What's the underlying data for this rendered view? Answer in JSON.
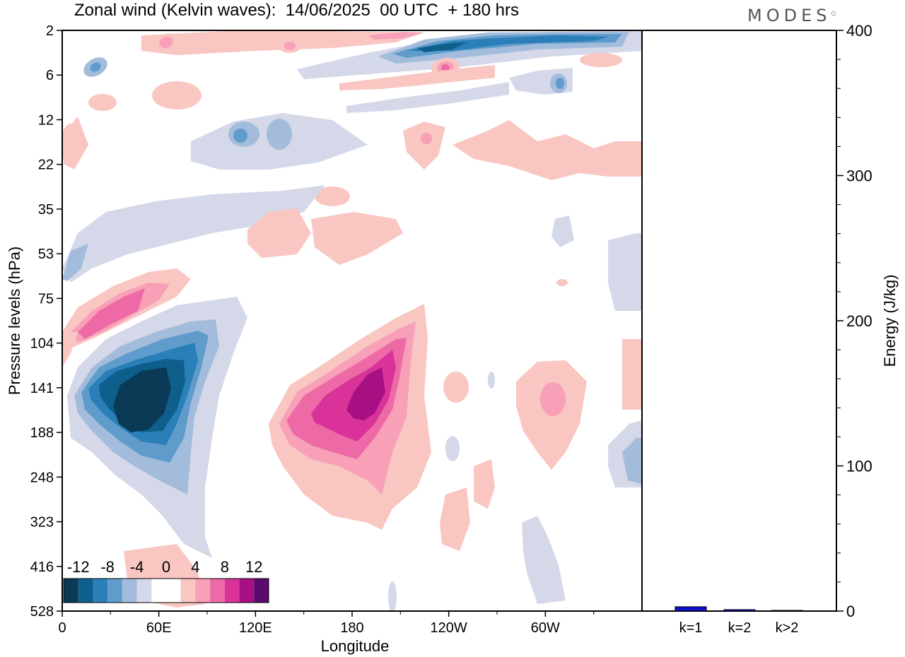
{
  "header": {
    "title": "Zonal wind (Kelvin waves):  14/06/2025  00 UTC  + 180 hrs",
    "brand": "MODES"
  },
  "chart_data": [
    {
      "type": "heatmap",
      "title": "Zonal wind (Kelvin waves):  14/06/2025  00 UTC  + 180 hrs",
      "xlabel": "Longitude",
      "ylabel": "Pressure levels (hPa)",
      "x_ticks": [
        "0",
        "60E",
        "120E",
        "180",
        "120W",
        "60W"
      ],
      "x_tick_values": [
        0,
        60,
        120,
        180,
        240,
        300
      ],
      "xlim": [
        0,
        360
      ],
      "y_ticks": [
        "2",
        "6",
        "12",
        "22",
        "35",
        "53",
        "75",
        "104",
        "141",
        "188",
        "248",
        "323",
        "416",
        "528"
      ],
      "y_scale": "reversed pressure levels",
      "colorbar": {
        "labels": [
          "-12",
          "-8",
          "-4",
          "0",
          "4",
          "8",
          "12"
        ],
        "levels": [
          -14,
          -12,
          -10,
          -8,
          -6,
          -4,
          -2,
          2,
          4,
          6,
          8,
          10,
          12,
          14
        ],
        "colors": [
          "#0a3a55",
          "#0f5f8c",
          "#2a7fb8",
          "#5f9ccb",
          "#a3bcdc",
          "#d4d8e8",
          "#ffffff",
          "#ffffff",
          "#f9c6c2",
          "#f7a0b8",
          "#ee6aa6",
          "#d9339a",
          "#a80f83",
          "#5b0a6e"
        ]
      },
      "features": [
        {
          "name": "negative core",
          "lon": 42,
          "level": "141",
          "value": -14
        },
        {
          "name": "positive core",
          "lon": 188,
          "level": "141",
          "value": 13
        },
        {
          "name": "positive band",
          "lon": 40,
          "level": "75",
          "value": 9
        },
        {
          "name": "negative upper band",
          "lon": 225,
          "level": "2",
          "value": -10
        },
        {
          "name": "positive upper spot",
          "lon": 238,
          "level": "6",
          "value": 9
        },
        {
          "name": "positive spot",
          "lon": 303,
          "level": "141",
          "value": 6
        },
        {
          "name": "negative east edge",
          "lon": 355,
          "level": "188",
          "value": -6
        }
      ]
    },
    {
      "type": "bar",
      "categories": [
        "k=1",
        "k=2",
        "k>2"
      ],
      "values": [
        3,
        1,
        0.5
      ],
      "ylabel": "Energy (J/kg)",
      "ylim": [
        0,
        400
      ],
      "y_ticks": [
        "0",
        "100",
        "200",
        "300",
        "400"
      ],
      "bar_color": "#1010c8"
    }
  ]
}
